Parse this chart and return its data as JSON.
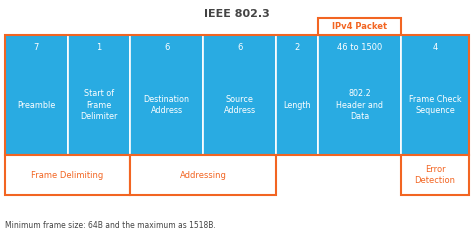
{
  "title": "IEEE 802.3",
  "footer": "Minimum frame size: 64B and the maximum as 1518B.",
  "bg_color": "#ffffff",
  "box_fill": "#29ABE2",
  "orange": "#F26522",
  "white_text": "#ffffff",
  "dark_text": "#444444",
  "fields": [
    {
      "num": "7",
      "label": "Preamble",
      "weight": 1.2
    },
    {
      "num": "1",
      "label": "Start of\nFrame\nDelimiter",
      "weight": 1.2
    },
    {
      "num": "6",
      "label": "Destination\nAddress",
      "weight": 1.4
    },
    {
      "num": "6",
      "label": "Source\nAddress",
      "weight": 1.4
    },
    {
      "num": "2",
      "label": "Length",
      "weight": 0.8
    },
    {
      "num": "46 to 1500",
      "label": "802.2\nHeader and\nData",
      "weight": 1.6
    },
    {
      "num": "4",
      "label": "Frame Check\nSequence",
      "weight": 1.3
    }
  ],
  "groups": [
    {
      "label": "Frame Delimiting",
      "start": 0,
      "end": 1
    },
    {
      "label": "Addressing",
      "start": 2,
      "end": 3
    },
    {
      "label": "Error\nDetection",
      "start": 6,
      "end": 6
    }
  ],
  "ipv4_field": 5,
  "ipv4_label": "IPv4 Packet"
}
